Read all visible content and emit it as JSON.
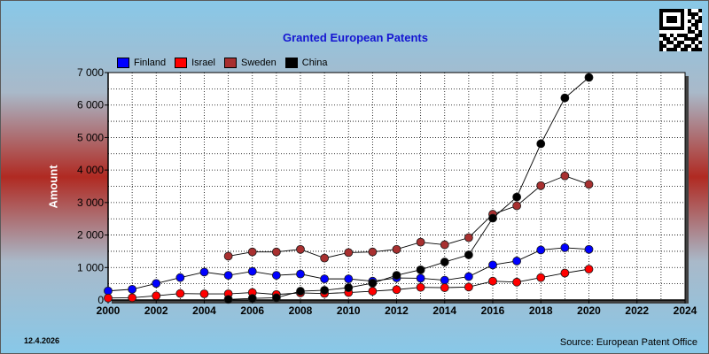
{
  "date": "12.4.2026",
  "source": "Source: European Patent Office",
  "chart_data": {
    "type": "line",
    "title": "Granted European Patents",
    "xlabel": "",
    "ylabel": "Amount",
    "xlim": [
      2000,
      2024
    ],
    "ylim": [
      0,
      7000
    ],
    "x_ticks": [
      "2000",
      "2002",
      "2004",
      "2006",
      "2008",
      "2010",
      "2012",
      "2014",
      "2016",
      "2018",
      "2020",
      "2022",
      "2024"
    ],
    "y_ticks": [
      "0",
      "1 000",
      "2 000",
      "3 000",
      "4 000",
      "5 000",
      "6 000",
      "7 000"
    ],
    "grid": true,
    "legend_position": "top-left",
    "series": [
      {
        "name": "Finland",
        "color": "#0000ff",
        "x": [
          2000,
          2001,
          2002,
          2003,
          2004,
          2005,
          2006,
          2007,
          2008,
          2009,
          2010,
          2011,
          2012,
          2013,
          2014,
          2015,
          2016,
          2017,
          2018,
          2019,
          2020
        ],
        "y": [
          280,
          330,
          510,
          690,
          860,
          760,
          880,
          760,
          800,
          650,
          650,
          580,
          680,
          670,
          610,
          720,
          1080,
          1200,
          1540,
          1610,
          1560
        ]
      },
      {
        "name": "Israel",
        "color": "#ff0000",
        "x": [
          2000,
          2001,
          2002,
          2003,
          2004,
          2005,
          2006,
          2007,
          2008,
          2009,
          2010,
          2011,
          2012,
          2013,
          2014,
          2015,
          2016,
          2017,
          2018,
          2019,
          2020
        ],
        "y": [
          60,
          70,
          130,
          200,
          190,
          190,
          230,
          170,
          220,
          200,
          230,
          270,
          320,
          390,
          380,
          400,
          580,
          550,
          690,
          830,
          950
        ]
      },
      {
        "name": "Sweden",
        "color": "#a83030",
        "x": [
          2005,
          2006,
          2007,
          2008,
          2009,
          2010,
          2011,
          2012,
          2013,
          2014,
          2015,
          2016,
          2017,
          2018,
          2019,
          2020
        ],
        "y": [
          1350,
          1480,
          1480,
          1560,
          1290,
          1460,
          1480,
          1560,
          1780,
          1700,
          1920,
          2640,
          2900,
          3520,
          3820,
          3560
        ]
      },
      {
        "name": "China",
        "color": "#000000",
        "x": [
          2005,
          2006,
          2007,
          2008,
          2009,
          2010,
          2011,
          2012,
          2013,
          2014,
          2015,
          2016,
          2017,
          2018,
          2019,
          2020
        ],
        "y": [
          20,
          50,
          70,
          270,
          300,
          380,
          520,
          760,
          930,
          1170,
          1390,
          2520,
          3170,
          4810,
          6220,
          6850
        ]
      }
    ]
  }
}
